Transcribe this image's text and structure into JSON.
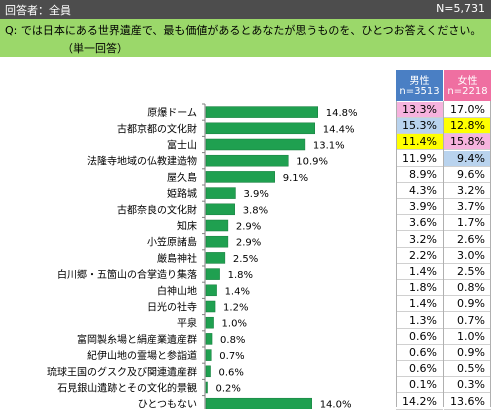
{
  "header": {
    "respondents": "回答者：全員",
    "n_total": "N=5,731"
  },
  "question": {
    "text": "Q:  では日本にある世界遺産で、最も価値があるとあなたが思うものを、ひとつお答えください。",
    "note": "（単一回答）"
  },
  "columns": {
    "male": {
      "label": "男性",
      "n": "n=3513"
    },
    "female": {
      "label": "女性",
      "n": "n=2218"
    }
  },
  "colors": {
    "bar": "#1fa050",
    "header_bg": "#4d4d4d",
    "question_bg": "#9bd86a",
    "male_head": "#4a7fc4",
    "female_head": "#ef6fa1",
    "highlight_first": "#ffff00",
    "highlight_second": "#f6b3de",
    "highlight_third": "#b9d3ee"
  },
  "chart_data": {
    "type": "bar",
    "orientation": "horizontal",
    "categories": [
      "原爆ドーム",
      "古都京都の文化財",
      "富士山",
      "法隆寺地域の仏教建造物",
      "屋久島",
      "姫路城",
      "古都奈良の文化財",
      "知床",
      "小笠原諸島",
      "厳島神社",
      "白川郷・五箇山の合掌造り集落",
      "白神山地",
      "日光の社寺",
      "平泉",
      "富岡製糸場と絹産業遺産群",
      "紀伊山地の霊場と参詣道",
      "琉球王国のグスク及び関連遺産群",
      "石見銀山遺跡とその文化的景観",
      "ひとつもない"
    ],
    "values": [
      14.8,
      14.4,
      13.1,
      10.9,
      9.1,
      3.9,
      3.8,
      2.9,
      2.9,
      2.5,
      1.8,
      1.4,
      1.2,
      1.0,
      0.8,
      0.7,
      0.6,
      0.2,
      14.0
    ],
    "value_labels": [
      "14.8%",
      "14.4%",
      "13.1%",
      "10.9%",
      "9.1%",
      "3.9%",
      "3.8%",
      "2.9%",
      "2.9%",
      "2.5%",
      "1.8%",
      "1.4%",
      "1.2%",
      "1.0%",
      "0.8%",
      "0.7%",
      "0.6%",
      "0.2%",
      "14.0%"
    ],
    "series": [
      {
        "name": "男性",
        "values": [
          "13.3%",
          "15.3%",
          "11.4%",
          "11.9%",
          "8.9%",
          "4.3%",
          "3.9%",
          "3.6%",
          "3.2%",
          "2.2%",
          "1.4%",
          "1.8%",
          "1.4%",
          "1.3%",
          "0.6%",
          "0.6%",
          "0.6%",
          "0.1%",
          "14.2%"
        ]
      },
      {
        "name": "女性",
        "values": [
          "17.0%",
          "12.8%",
          "15.8%",
          "9.4%",
          "9.6%",
          "3.2%",
          "3.7%",
          "1.7%",
          "2.6%",
          "3.0%",
          "2.5%",
          "0.8%",
          "0.9%",
          "0.7%",
          "1.0%",
          "0.9%",
          "0.5%",
          "0.3%",
          "13.6%"
        ]
      }
    ],
    "highlights": {
      "male": [
        2,
        0,
        1,
        3
      ],
      "female": [
        1,
        2,
        3,
        0
      ]
    }
  }
}
